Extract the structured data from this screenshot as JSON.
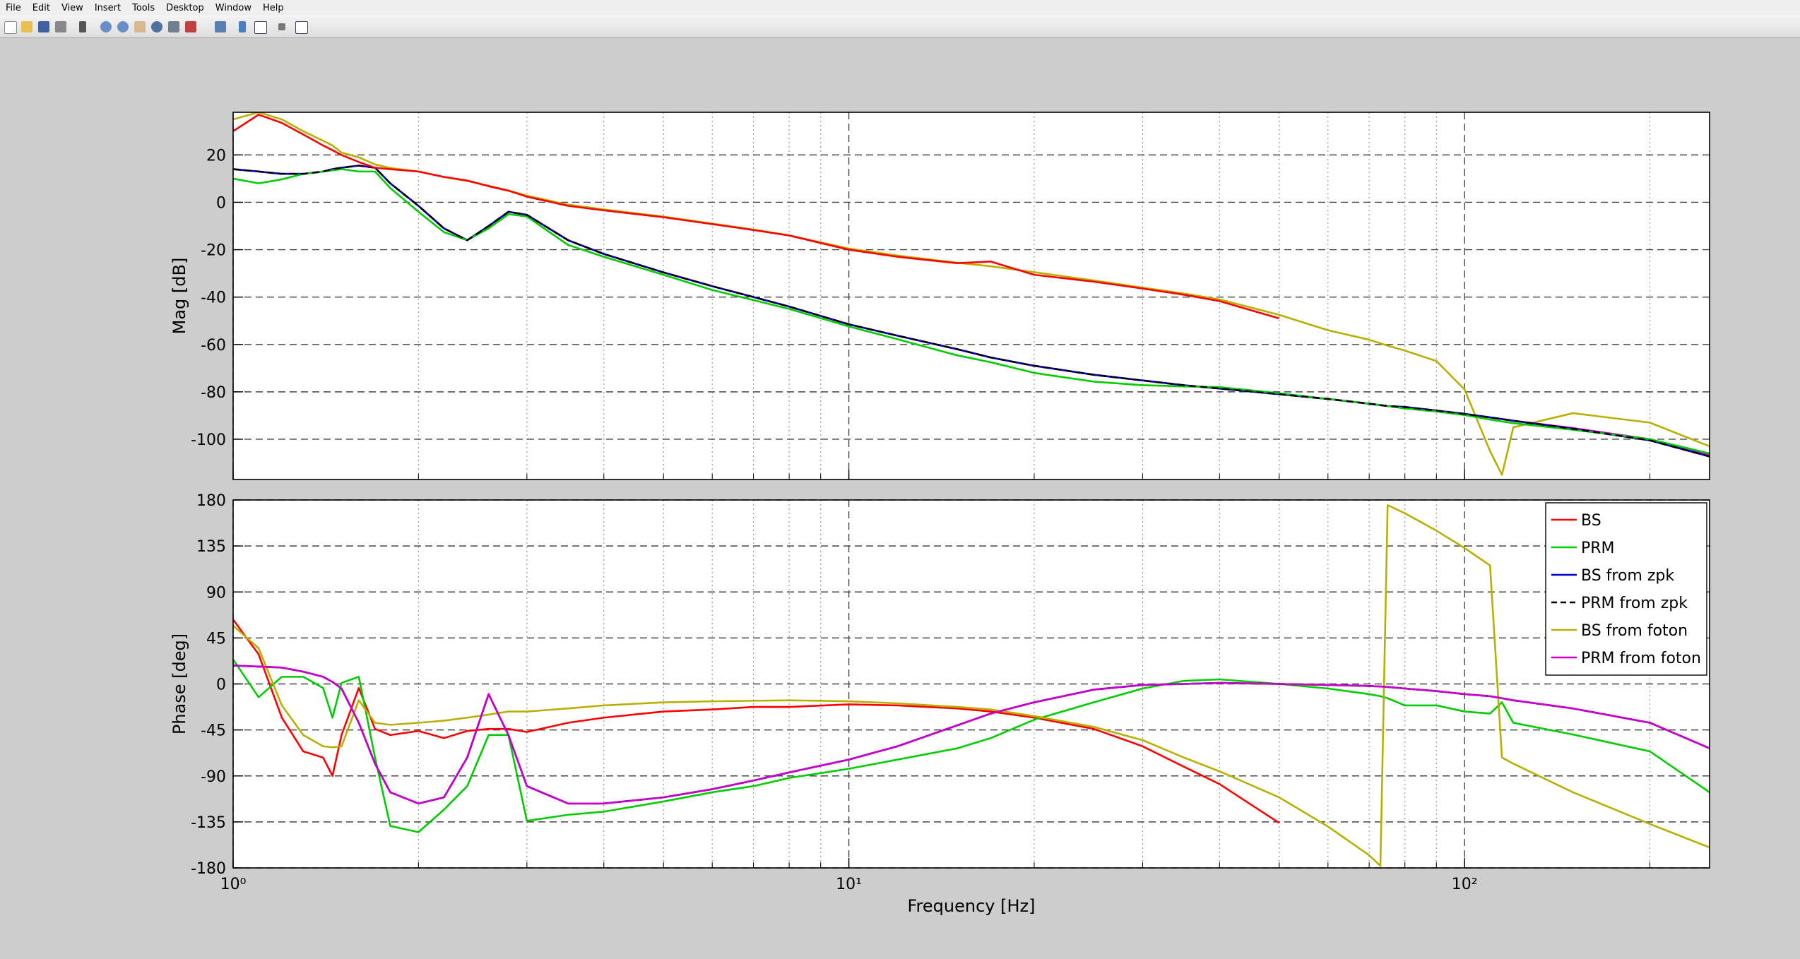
{
  "menu": [
    "File",
    "Edit",
    "View",
    "Insert",
    "Tools",
    "Desktop",
    "Window",
    "Help"
  ],
  "chart_data": [
    {
      "type": "line",
      "ylabel": "Mag [dB]",
      "xscale": "log",
      "grid": true,
      "x": [
        1,
        1.1,
        1.2,
        1.3,
        1.4,
        1.45,
        1.5,
        1.6,
        1.7,
        1.8,
        2,
        2.2,
        2.4,
        2.6,
        2.8,
        3,
        3.5,
        4,
        5,
        6,
        7,
        8,
        10,
        12,
        15,
        17,
        20,
        25,
        30,
        35,
        40,
        50,
        60,
        70,
        73,
        75,
        80,
        90,
        100,
        110,
        115,
        120,
        150,
        200,
        250
      ],
      "xlim": [
        1,
        250
      ],
      "xticks": [
        1,
        10,
        100
      ],
      "ylim": [
        -117,
        38
      ],
      "yticks": [
        -100,
        -80,
        -60,
        -40,
        -20,
        0,
        20
      ],
      "series": [
        {
          "color": "#b8b000",
          "values": [
            35,
            38,
            35,
            30,
            26,
            24,
            21,
            19,
            16,
            14.5,
            13,
            10.7,
            9,
            7,
            5,
            2.8,
            -1,
            -3,
            -6,
            -9,
            -11.5,
            -14,
            -19.5,
            -22.5,
            -25.5,
            -27,
            -29.5,
            -33,
            -36,
            -38.5,
            -41,
            -47.5,
            -54,
            -58,
            -59.5,
            -60.5,
            -62.6,
            -67,
            -79,
            -105,
            -115,
            -95,
            -89,
            -93,
            -103
          ]
        },
        {
          "color": "#cc00cc",
          "values": [
            14,
            13,
            12,
            12,
            13,
            14,
            14.6,
            15.5,
            14.6,
            8,
            -1.5,
            -11,
            -16,
            -10,
            -4,
            -5.3,
            -16,
            -21.8,
            -29.6,
            -35.4,
            -40,
            -44,
            -51.5,
            -56.3,
            -62,
            -65.5,
            -69,
            -72.8,
            -75.2,
            -77.2,
            -78.6,
            -81,
            -83,
            -85,
            -85.6,
            -86,
            -86.4,
            -87.9,
            -89.3,
            -90.8,
            -91.5,
            -92.2,
            -95.3,
            -100,
            -106.5
          ]
        },
        {
          "color": "#0000cc",
          "values": [
            14,
            13,
            12,
            12,
            13,
            14,
            14.6,
            15.5,
            14.6,
            8,
            -1.5,
            -11,
            -16,
            -10,
            -4,
            -5.3,
            -16,
            -21.8,
            -29.6,
            -35.4,
            -40,
            -44,
            -51.5,
            -56.3,
            -62,
            -65.5,
            -69,
            -72.8,
            -75.2,
            -77.2,
            -78.6,
            -81,
            -83,
            -85,
            -85.6,
            -86,
            -86.4,
            -87.9,
            -89.3,
            -90.8,
            -91.5,
            -92.2,
            -95.6,
            -100.5,
            -107.3
          ]
        },
        {
          "color": "#00cc00",
          "values": [
            10,
            8,
            9.7,
            12,
            13,
            13.5,
            14,
            13,
            13,
            6,
            -4,
            -12.6,
            -16,
            -11,
            -5,
            -6,
            -18,
            -23,
            -30.6,
            -37,
            -41.3,
            -45,
            -52.4,
            -57.8,
            -64.6,
            -67.5,
            -72,
            -75.7,
            -77.2,
            -77.7,
            -78,
            -80.6,
            -83,
            -85,
            -85.6,
            -86,
            -87,
            -88.3,
            -89.8,
            -91.7,
            -92.5,
            -93.2,
            -96,
            -100,
            -106
          ]
        },
        {
          "color": "#000000",
          "dash": true,
          "values": [
            14,
            13,
            12,
            12,
            13,
            14,
            14.6,
            15.5,
            14.6,
            8,
            -1.5,
            -11,
            -16,
            -10,
            -4,
            -5.3,
            -16,
            -21.8,
            -29.6,
            -35.4,
            -40,
            -44,
            -51.5,
            -56.3,
            -62,
            -65.5,
            -69,
            -72.8,
            -75.2,
            -77.2,
            -78.6,
            -81,
            -83,
            -85,
            -85.6,
            -86,
            -86.4,
            -87.9,
            -89.3,
            -90.8,
            -91.5,
            -92.2,
            -95.6,
            -100.5,
            -107.3
          ]
        },
        {
          "color": "#ff0000",
          "values": [
            30,
            37,
            33.5,
            28.6,
            24,
            22,
            20,
            17,
            14.6,
            14,
            13,
            10.7,
            9.2,
            6.8,
            4.9,
            2.4,
            -1.5,
            -3.4,
            -6.3,
            -9.2,
            -11.7,
            -14,
            -20,
            -23,
            -25.7,
            -25,
            -30.6,
            -33.5,
            -36.4,
            -39,
            -41.7,
            -49,
            null,
            null,
            null,
            null,
            null,
            null,
            null,
            null,
            null,
            null,
            null,
            null,
            null
          ]
        }
      ]
    },
    {
      "type": "line",
      "ylabel": "Phase [deg]",
      "xlabel": "Frequency [Hz]",
      "xscale": "log",
      "grid": true,
      "legend": "northeast",
      "x": [
        1,
        1.1,
        1.2,
        1.3,
        1.4,
        1.45,
        1.5,
        1.6,
        1.7,
        1.8,
        2,
        2.2,
        2.4,
        2.6,
        2.8,
        3,
        3.5,
        4,
        5,
        6,
        7,
        8,
        10,
        12,
        15,
        17,
        20,
        25,
        30,
        35,
        40,
        50,
        60,
        70,
        73,
        75,
        80,
        90,
        100,
        110,
        115,
        120,
        150,
        200,
        250
      ],
      "xlim": [
        1,
        250
      ],
      "xticks": [
        {
          "value": 1,
          "label": "10⁰"
        },
        {
          "value": 10,
          "label": "10¹"
        },
        {
          "value": 100,
          "label": "10²"
        }
      ],
      "ylim": [
        -180,
        180
      ],
      "yticks": [
        -180,
        -135,
        -90,
        -45,
        0,
        45,
        90,
        135,
        180
      ],
      "series": [
        {
          "name": "BS",
          "color": "#ff0000",
          "values": [
            63,
            29,
            -33,
            -66,
            -72,
            -90,
            -50,
            -4,
            -44,
            -50,
            -46,
            -53,
            -46,
            -44,
            -44,
            -47,
            -38,
            -33,
            -27,
            -25,
            -22.5,
            -22.5,
            -20,
            -21,
            -24,
            -27,
            -33,
            -44,
            -61,
            -81,
            -98,
            -136,
            null,
            null,
            null,
            null,
            null,
            null,
            null,
            null,
            null,
            null,
            null,
            null,
            null
          ]
        },
        {
          "name": "PRM",
          "color": "#00cc00",
          "values": [
            24,
            -13,
            7,
            7,
            -4,
            -33,
            1,
            7,
            -72,
            -139,
            -145,
            -123,
            -100,
            -50,
            -50,
            -134,
            -128,
            -125,
            -115,
            -106,
            -100,
            -92,
            -83,
            -74,
            -63,
            -53,
            -35,
            -18,
            -4.5,
            3,
            4.5,
            0,
            -4.5,
            -10,
            -12,
            -14,
            -21,
            -21,
            -27,
            -29,
            -18,
            -38,
            -49.5,
            -66,
            -106
          ]
        },
        {
          "name": "BS from zpk",
          "color": "#0000cc",
          "values": [
            18,
            17,
            16,
            12,
            7,
            2,
            -4.5,
            -38,
            -78,
            -106,
            -117,
            -111,
            -72,
            -10,
            -50,
            -100,
            -117,
            -117,
            -111,
            -103,
            -94.5,
            -86.6,
            -74,
            -61,
            -40.5,
            -29,
            -18,
            -5.6,
            -1,
            0,
            1,
            0,
            -1,
            -2,
            -2.5,
            -3,
            -4.5,
            -7,
            -10,
            -12,
            -14,
            -16,
            -24,
            -38,
            -63
          ]
        },
        {
          "name": "PRM from zpk",
          "color": "#000000",
          "dash": true,
          "values": [
            18,
            17,
            16,
            12,
            7,
            2,
            -4.5,
            -38,
            -78,
            -106,
            -117,
            -111,
            -72,
            -10,
            -50,
            -100,
            -117,
            -117,
            -111,
            -103,
            -94.5,
            -86.6,
            -74,
            -61,
            -40.5,
            -29,
            -18,
            -5.6,
            -1,
            0,
            1,
            0,
            -1,
            -2,
            -2.5,
            -3,
            -4.5,
            -7,
            -10,
            -12,
            -14,
            -16,
            -24,
            -38,
            -63
          ]
        },
        {
          "name": "BS from foton",
          "color": "#b8b000",
          "values": [
            57,
            35,
            -21,
            -50,
            -61,
            -62,
            -61,
            -16,
            -38,
            -40,
            -38,
            -36,
            -33,
            -30,
            -27,
            -27,
            -24,
            -21,
            -18,
            -17,
            -16.5,
            -16,
            -17,
            -19,
            -22.5,
            -25,
            -31.5,
            -42,
            -55,
            -72,
            -85.5,
            -111,
            -139.5,
            -167.6,
            -178,
            175,
            167,
            150,
            133,
            116,
            -72,
            -78,
            -106,
            -137,
            -160
          ]
        },
        {
          "name": "PRM from foton",
          "color": "#cc00cc",
          "values": [
            18,
            17,
            16,
            12,
            7,
            2,
            -4.5,
            -38,
            -78,
            -106,
            -117,
            -111,
            -72,
            -10,
            -50,
            -100,
            -117,
            -117,
            -111,
            -103,
            -94.5,
            -86.6,
            -74,
            -61,
            -40.5,
            -29,
            -18,
            -5.6,
            -1,
            0,
            1,
            0,
            -1,
            -2,
            -2.5,
            -3,
            -4.5,
            -7,
            -10,
            -12,
            -14,
            -16,
            -24,
            -38,
            -63
          ]
        }
      ]
    }
  ]
}
